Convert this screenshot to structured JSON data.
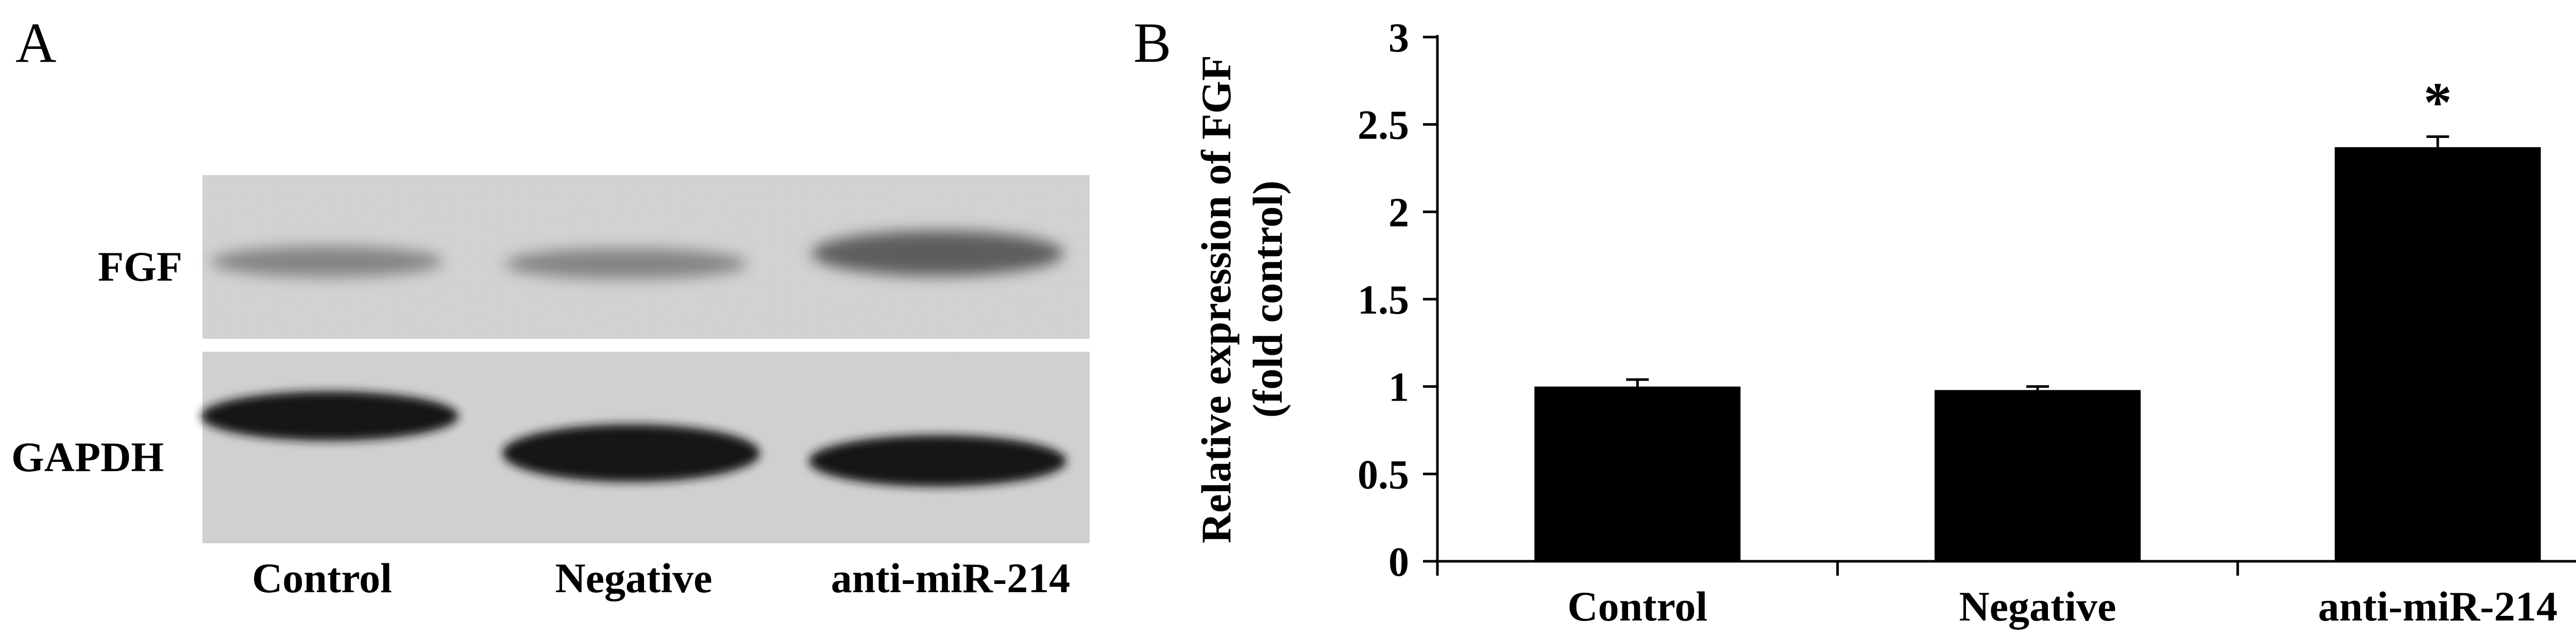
{
  "panels": {
    "a": {
      "letter": "A",
      "row_labels": [
        "FGF",
        "GAPDH"
      ],
      "lane_labels": [
        "Control",
        "Negative",
        "anti-miR-214"
      ]
    },
    "b": {
      "letter": "B"
    }
  },
  "chart_data": {
    "type": "bar",
    "categories": [
      "Control",
      "Negative",
      "anti-miR-214"
    ],
    "values": [
      1.0,
      0.98,
      2.37
    ],
    "errors": [
      0.04,
      0.02,
      0.06
    ],
    "annotations": [
      "",
      "",
      "*"
    ],
    "ylabel_lines": [
      "Relative expression of FGF",
      "(fold control)"
    ],
    "ylim": [
      0,
      3
    ],
    "yticks": [
      0,
      0.5,
      1,
      1.5,
      2,
      2.5,
      3
    ],
    "ytick_labels": [
      "0",
      "0.5",
      "1",
      "1.5",
      "2",
      "2.5",
      "3"
    ],
    "grid": false,
    "legend": "none",
    "bar_color": "#000000"
  }
}
